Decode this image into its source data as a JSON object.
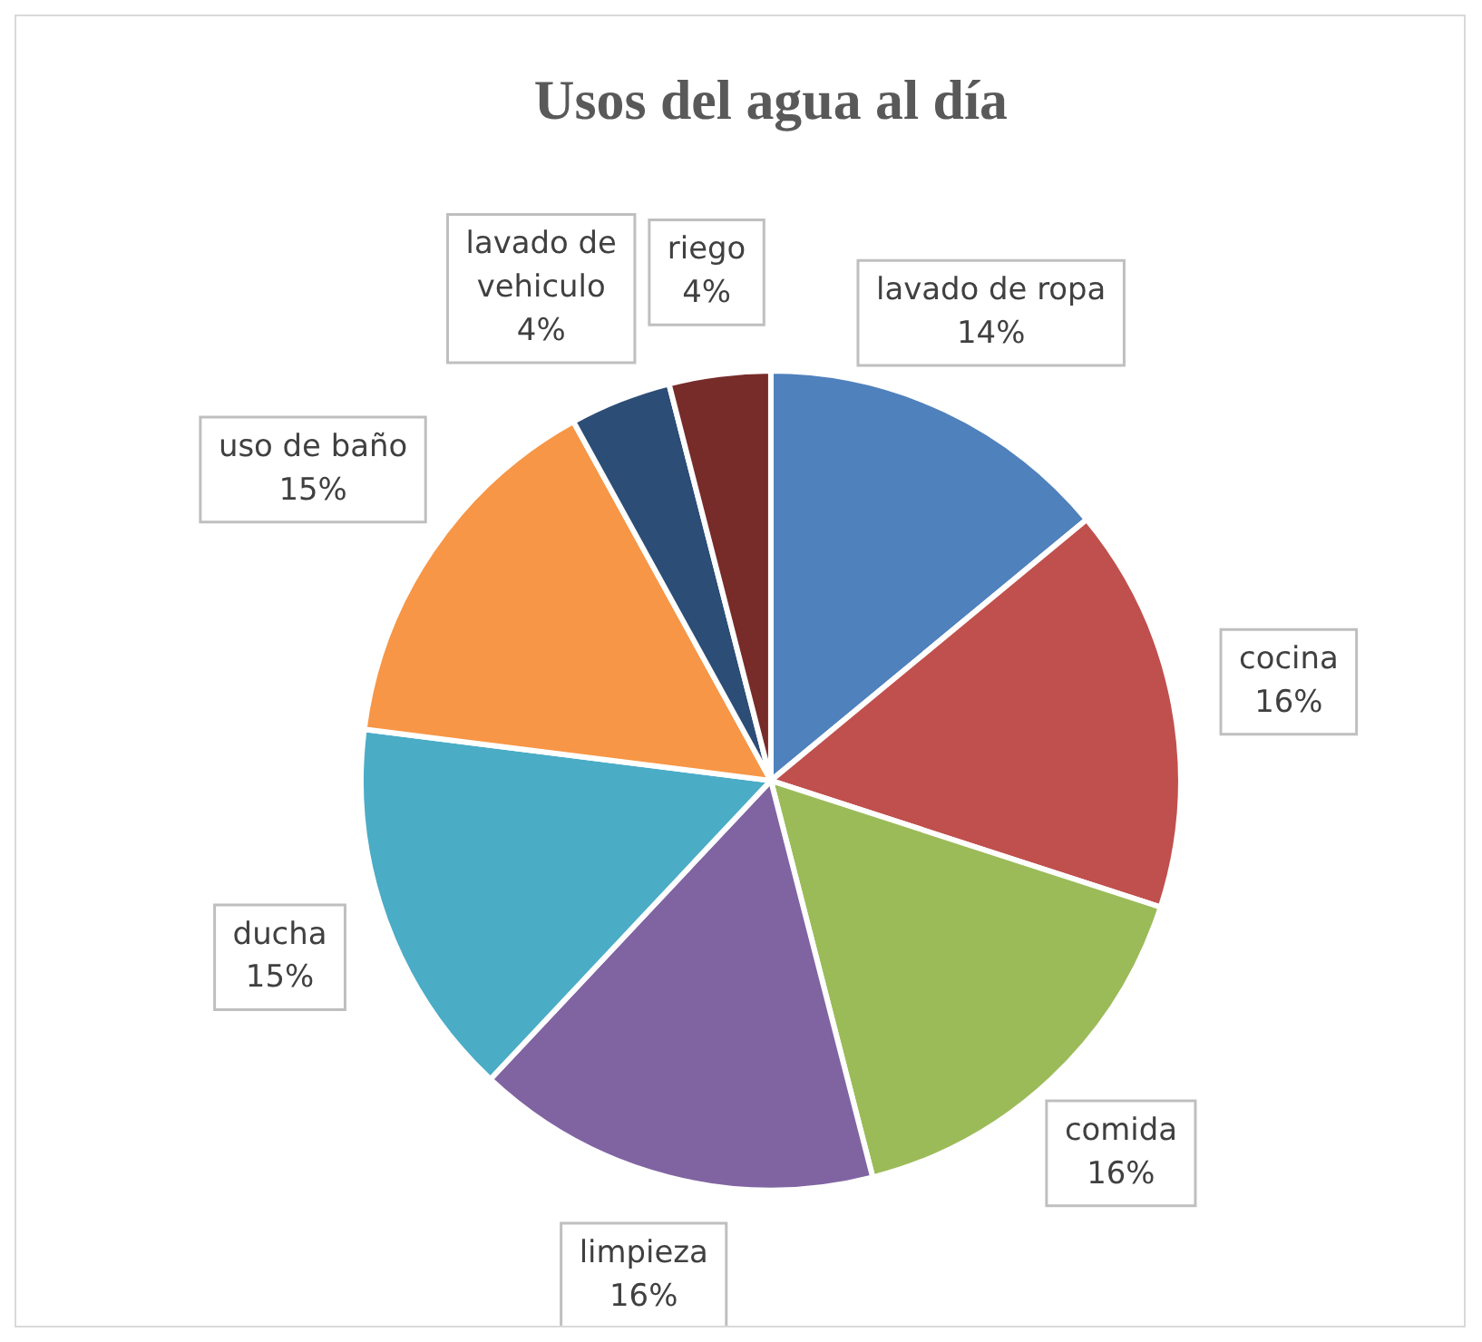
{
  "chart_data": {
    "type": "pie",
    "title": "Usos del agua al día",
    "categories": [
      "lavado de ropa",
      "cocina",
      "comida",
      "limpieza",
      "ducha",
      "uso de baño",
      "lavado de vehiculo",
      "riego"
    ],
    "values": [
      14,
      16,
      16,
      16,
      15,
      15,
      4,
      4
    ],
    "colors": [
      "#4f81bd",
      "#c0504d",
      "#9bbb59",
      "#8064a2",
      "#4bacc6",
      "#f79646",
      "#2c4d75",
      "#772c2a"
    ],
    "value_labels": [
      "14%",
      "16%",
      "16%",
      "16%",
      "15%",
      "15%",
      "4%",
      "4%"
    ],
    "legend": false
  }
}
